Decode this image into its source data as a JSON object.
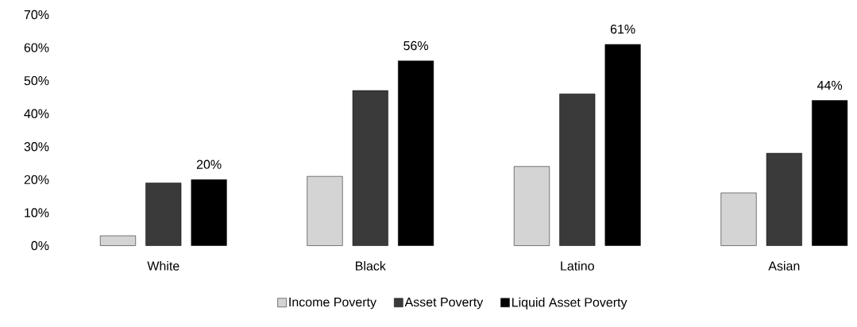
{
  "chart_data": {
    "type": "bar",
    "categories": [
      "White",
      "Black",
      "Latino",
      "Asian"
    ],
    "series": [
      {
        "name": "Income Poverty",
        "color": "#d4d4d4",
        "values": [
          3,
          21,
          24,
          16
        ]
      },
      {
        "name": "Asset Poverty",
        "color": "#3a3a3a",
        "values": [
          19,
          47,
          46,
          28
        ]
      },
      {
        "name": "Liquid Asset Poverty",
        "color": "#000000",
        "values": [
          20,
          56,
          61,
          44
        ],
        "value_labels": [
          "20%",
          "56%",
          "61%",
          "44%"
        ]
      }
    ],
    "ylim": [
      0,
      70
    ],
    "yticks": [
      {
        "value": 0,
        "label": "0%"
      },
      {
        "value": 10,
        "label": "10%"
      },
      {
        "value": 20,
        "label": "20%"
      },
      {
        "value": 30,
        "label": "30%"
      },
      {
        "value": 40,
        "label": "40%"
      },
      {
        "value": 50,
        "label": "50%"
      },
      {
        "value": 60,
        "label": "60%"
      },
      {
        "value": 70,
        "label": "70%"
      }
    ],
    "legend": "bottom"
  }
}
